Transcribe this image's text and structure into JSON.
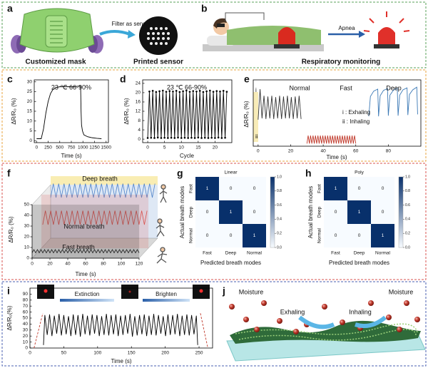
{
  "panel_a": {
    "label": "a",
    "mask": "Customized mask",
    "arrow": "Filter as sensor",
    "sensor": "Printed sensor"
  },
  "panel_b": {
    "label": "b",
    "apnea": "Apnea",
    "caption": "Respiratory monitoring"
  },
  "panel_j": {
    "label": "j",
    "moisture_left": "Moisture",
    "moisture_right": "Moisture",
    "exhaling": "Exhaling",
    "inhaling": "Inhaling"
  },
  "chart_data": [
    {
      "type": "line",
      "panel_label": "c",
      "annotation": "23 ℃ 66-90%",
      "xlabel": "Time (s)",
      "ylabel": "ΔR/R₀ (%)",
      "xlim": [
        -50,
        1550
      ],
      "ylim": [
        -1,
        31
      ],
      "xticks": [
        0,
        250,
        500,
        750,
        1000,
        1250,
        1500
      ],
      "yticks": [
        0,
        5,
        10,
        15,
        20,
        25,
        30
      ],
      "series": [
        {
          "color": "#000000",
          "x": [
            0,
            100,
            150,
            200,
            250,
            300,
            350,
            400,
            500,
            600,
            700,
            800,
            900,
            950,
            960,
            970,
            990,
            1020,
            1100,
            1200,
            1300,
            1400
          ],
          "values": [
            1,
            1,
            6,
            14,
            20,
            24,
            26,
            27,
            27.5,
            27.5,
            27.5,
            27.5,
            27.8,
            27.8,
            15,
            8,
            5,
            3,
            2,
            1.5,
            1.2,
            1
          ]
        }
      ]
    },
    {
      "type": "line",
      "panel_label": "d",
      "annotation": "23 ℃ 66-90%",
      "xlabel": "Cycle",
      "ylabel": "ΔR/R₀ (%)",
      "markers": true,
      "xlim": [
        -1.5,
        25
      ],
      "ylim": [
        -1.5,
        25.5
      ],
      "xticks": [
        0,
        5,
        10,
        15,
        20
      ],
      "yticks": [
        0,
        4,
        8,
        12,
        16,
        20,
        24
      ],
      "series": [
        {
          "color": "#000000",
          "x": [
            0,
            0.5,
            1,
            1.5,
            2,
            2.5,
            3,
            3.5,
            4,
            4.5,
            5,
            5.5,
            6,
            6.5,
            7,
            7.5,
            8,
            8.5,
            9,
            9.5,
            10,
            10.5,
            11,
            11.5,
            12,
            12.5,
            13,
            13.5,
            14,
            14.5,
            15,
            15.5,
            16,
            16.5,
            17,
            17.5,
            18,
            18.5,
            19,
            19.5,
            20,
            20.5,
            21,
            21.5,
            22,
            22.5,
            23,
            23.5
          ],
          "values": [
            0.5,
            20.5,
            0.6,
            20.8,
            0.5,
            20.3,
            0.7,
            20.6,
            0.5,
            20.9,
            0.6,
            20.4,
            0.5,
            20.7,
            0.6,
            20.5,
            0.5,
            20.8,
            0.7,
            20.3,
            0.5,
            20.6,
            0.6,
            20.9,
            0.5,
            20.4,
            0.6,
            20.7,
            0.5,
            20.5,
            0.7,
            20.8,
            0.5,
            20.3,
            0.6,
            20.6,
            0.5,
            20.9,
            0.6,
            20.4,
            0.5,
            20.7,
            0.7,
            20.5,
            0.5,
            20.8,
            0.6,
            20.4
          ]
        }
      ]
    },
    {
      "type": "line",
      "panel_label": "e",
      "xlabel": "Time (s)",
      "ylabel": "ΔR/R₀ (%)",
      "annotations": [
        "i",
        "ii",
        "i : Exhaling",
        "ii : Inhaling"
      ],
      "xlim": [
        -3,
        100
      ],
      "ylim": [
        0,
        10
      ],
      "xticks": [
        0,
        20,
        40,
        60,
        80
      ],
      "series": [
        {
          "name": "Normal",
          "color": "#333333",
          "x": [
            0,
            1.2,
            2.4,
            3.6,
            4.8,
            6.0,
            7.2,
            8.4,
            9.6,
            10.8,
            12.0,
            13.2,
            14.4,
            15.6,
            16.8,
            18.0,
            19.2,
            20.4,
            21.6,
            22.8,
            24.0,
            25.2,
            26.4
          ],
          "values": [
            4,
            8.6,
            4.2,
            7.6,
            4.1,
            7.5,
            4.2,
            7.6,
            4.1,
            7.4,
            4.2,
            7.6,
            4.1,
            7.5,
            4.2,
            7.6,
            4.2,
            7.4,
            4.1,
            7.5,
            4.2,
            7.6,
            4.1
          ]
        },
        {
          "name": "Fast",
          "color": "#c0392b",
          "x": [
            30,
            30.75,
            31.5,
            32.25,
            33,
            33.75,
            34.5,
            35.25,
            36,
            36.75,
            37.5,
            38.25,
            39,
            39.75,
            40.5,
            41.25,
            42,
            42.75,
            43.5,
            44.25,
            45,
            45.75,
            46.5,
            47.25,
            48,
            48.75,
            49.5,
            50.25,
            51,
            51.75,
            52.5,
            53.25,
            54,
            54.75,
            55.5,
            56.25,
            57,
            57.75,
            58.5,
            59.25,
            60
          ],
          "values": [
            0.4,
            1.6,
            0.4,
            1.6,
            0.4,
            1.6,
            0.4,
            1.6,
            0.4,
            1.6,
            0.4,
            1.6,
            0.4,
            1.6,
            0.4,
            1.6,
            0.4,
            1.6,
            0.4,
            1.6,
            0.4,
            1.6,
            0.4,
            1.6,
            0.4,
            1.6,
            0.4,
            1.6,
            0.4,
            1.6,
            0.4,
            1.6,
            0.4,
            1.6,
            0.4,
            1.6,
            0.4,
            1.6,
            0.4,
            1.6,
            0.4
          ]
        },
        {
          "name": "Deep",
          "color": "#3a78b5",
          "x": [
            68,
            69,
            71,
            73.5,
            74,
            75,
            77,
            79.5,
            80,
            81,
            83,
            85.5,
            86,
            87,
            89,
            91.5,
            92,
            93,
            95,
            97.5,
            98
          ],
          "values": [
            4.5,
            7.5,
            8.3,
            8.6,
            4.5,
            7.6,
            8.4,
            8.7,
            4.6,
            7.7,
            8.4,
            8.8,
            4.6,
            7.7,
            8.5,
            8.8,
            4.7,
            7.8,
            8.5,
            8.9,
            4.8
          ]
        }
      ]
    },
    {
      "type": "line3d",
      "panel_label": "f",
      "xlabel": "Time (s)",
      "ylabel": "ΔR/R₀ (%)",
      "xlim": [
        0,
        120
      ],
      "ylim": [
        0,
        50
      ],
      "xticks": [
        0,
        20,
        40,
        60,
        80,
        100,
        120
      ],
      "yticks": [
        0,
        10,
        20,
        30,
        40,
        50
      ],
      "series": [
        {
          "name": "Deep breath",
          "color": "#4f83c9",
          "x": [
            0,
            3,
            6,
            9,
            12,
            15,
            18,
            21,
            24,
            27,
            30,
            33,
            36,
            39,
            42,
            45,
            48,
            51,
            54,
            57,
            60,
            63,
            66,
            69,
            72,
            75,
            78,
            81,
            84,
            87,
            90,
            93,
            96,
            99,
            102,
            105,
            108,
            111,
            114,
            117
          ],
          "values": [
            38,
            51,
            38,
            51,
            38,
            51,
            38,
            51,
            38,
            51,
            38,
            51,
            38,
            51,
            38,
            51,
            38,
            51,
            38,
            51,
            38,
            51,
            38,
            51,
            38,
            51,
            38,
            51,
            38,
            51,
            38,
            51,
            38,
            51,
            38,
            51,
            38,
            51,
            38,
            51
          ]
        },
        {
          "name": "Normal breath",
          "color": "#d9534f",
          "x": [
            1.5,
            4.5,
            7.5,
            10.5,
            13.5,
            16.5,
            19.5,
            22.5,
            25.5,
            28.5,
            31.5,
            34.5,
            37.5,
            40.5,
            43.5,
            46.5,
            49.5,
            52.5,
            55.5,
            58.5,
            61.5,
            64.5,
            67.5,
            70.5,
            73.5,
            76.5,
            79.5,
            82.5,
            85.5,
            88.5,
            91.5,
            94.5,
            97.5,
            100.5,
            103.5,
            106.5,
            109.5,
            112.5,
            115.5,
            118.5
          ],
          "values": [
            22,
            35,
            22,
            35,
            22,
            35,
            22,
            35,
            22,
            35,
            22,
            35,
            22,
            35,
            22,
            35,
            22,
            35,
            22,
            35,
            22,
            35,
            22,
            35,
            22,
            35,
            22,
            35,
            22,
            35,
            22,
            35,
            22,
            35,
            22,
            35,
            22,
            35,
            22,
            35
          ]
        },
        {
          "name": "Fast breath",
          "color": "#222222",
          "x": [
            0,
            2,
            4,
            6,
            8,
            10,
            12,
            14,
            16,
            18,
            20,
            22,
            24,
            26,
            28,
            30,
            32,
            34,
            36,
            38,
            40,
            42,
            44,
            46,
            48,
            50,
            52,
            54,
            56,
            58,
            60,
            62,
            64,
            66,
            68,
            70,
            72,
            74,
            76,
            78,
            80,
            82,
            84,
            86,
            88,
            90,
            92,
            94,
            96,
            98,
            100,
            102,
            104,
            106,
            108,
            110,
            112,
            114,
            116,
            118,
            120
          ],
          "values": [
            5,
            8,
            5,
            8,
            5,
            8,
            5,
            8,
            5,
            8,
            5,
            8,
            5,
            8,
            5,
            8,
            5,
            8,
            5,
            8,
            5,
            8,
            5,
            8,
            5,
            8,
            5,
            8,
            5,
            8,
            5,
            8,
            5,
            8,
            5,
            8,
            5,
            8,
            5,
            8,
            5,
            8,
            5,
            8,
            5,
            8,
            5,
            8,
            5,
            8,
            5,
            8,
            5,
            8,
            5,
            8,
            5,
            8,
            5,
            8,
            5
          ]
        }
      ]
    },
    {
      "type": "heatmap",
      "panel_label": "g",
      "title": "Linear",
      "categories": [
        "Fast",
        "Deep",
        "Normal"
      ],
      "values": [
        [
          1,
          0,
          0
        ],
        [
          0,
          1,
          0
        ],
        [
          0,
          0,
          1
        ]
      ],
      "xlabel": "Predicted breath modes",
      "ylabel": "Actual breath modes",
      "cmap": [
        "#f7fbff",
        "#08306b"
      ],
      "clim": [
        0,
        1
      ],
      "colorbar_ticks": [
        {
          "value": 0,
          "label": "0.0"
        },
        {
          "value": 0.2,
          "label": "0.2"
        },
        {
          "value": 0.4,
          "label": "0.4"
        },
        {
          "value": 0.6,
          "label": "0.6"
        },
        {
          "value": 0.8,
          "label": "0.8"
        },
        {
          "value": 1,
          "label": "1.0"
        }
      ]
    },
    {
      "type": "heatmap",
      "panel_label": "h",
      "title": "Poly",
      "categories": [
        "Fast",
        "Deep",
        "Normal"
      ],
      "values": [
        [
          1,
          0,
          0
        ],
        [
          0,
          1,
          0
        ],
        [
          0,
          0,
          1
        ]
      ],
      "xlabel": "Predicted breath modes",
      "ylabel": "Actual breath modes",
      "cmap": [
        "#f7fbff",
        "#08306b"
      ],
      "clim": [
        0,
        1
      ],
      "colorbar_ticks": [
        {
          "value": 0,
          "label": "0.0"
        },
        {
          "value": 0.2,
          "label": "0.2"
        },
        {
          "value": 0.4,
          "label": "0.4"
        },
        {
          "value": 0.6,
          "label": "0.6"
        },
        {
          "value": 0.8,
          "label": "0.8"
        },
        {
          "value": 1,
          "label": "1.0"
        }
      ]
    },
    {
      "type": "line",
      "panel_label": "i",
      "xlabel": "Time (s)",
      "ylabel": "ΔR/R₀(%)",
      "annotations": [
        "Extinction",
        "Brighten"
      ],
      "xlim": [
        0,
        270
      ],
      "ylim": [
        0,
        100
      ],
      "xticks": [
        0,
        50,
        100,
        150,
        200,
        250
      ],
      "yticks": [
        0,
        10,
        20,
        30,
        40,
        50,
        60,
        70,
        80,
        90
      ],
      "series": [
        {
          "color": "#000000",
          "x": [
            20,
            22,
            25.5,
            29,
            32.5,
            36,
            39.5,
            43,
            46.5,
            50,
            53.5,
            57,
            60.5,
            64,
            67.5,
            71,
            74.5,
            78,
            81.5,
            85,
            88.5,
            92,
            95.5,
            99,
            102.5,
            106,
            109.5,
            113,
            116.5,
            120,
            123.5,
            127,
            130.5,
            134,
            137.5,
            141,
            144.5,
            148,
            151.5,
            155,
            158.5,
            162,
            165.5,
            169,
            172.5,
            176,
            179.5,
            183,
            186.5,
            190,
            193.5,
            197,
            200.5,
            204,
            207.5,
            211,
            214.5,
            218,
            221.5,
            225,
            228.5,
            232,
            235.5,
            239,
            242.5,
            246,
            248
          ],
          "values": [
            5,
            55,
            22,
            56,
            20,
            54,
            24,
            57,
            21,
            55,
            23,
            53,
            20,
            56,
            22,
            55,
            19,
            57,
            23,
            54,
            21,
            56,
            24,
            55,
            20,
            53,
            22,
            57,
            21,
            55,
            23,
            56,
            20,
            54,
            22,
            55,
            24,
            57,
            19,
            53,
            21,
            55,
            23,
            56,
            20,
            54,
            22,
            57,
            21,
            55,
            24,
            53,
            20,
            56,
            22,
            55,
            23,
            57,
            20,
            54,
            22,
            56,
            21,
            55,
            23,
            54,
            5
          ]
        },
        {
          "color": "#c0392b",
          "dash": true,
          "x": [
            6,
            19
          ],
          "values": [
            0,
            58
          ]
        },
        {
          "color": "#c0392b",
          "dash": true,
          "x": [
            252,
            263
          ],
          "values": [
            58,
            0
          ]
        }
      ]
    }
  ]
}
